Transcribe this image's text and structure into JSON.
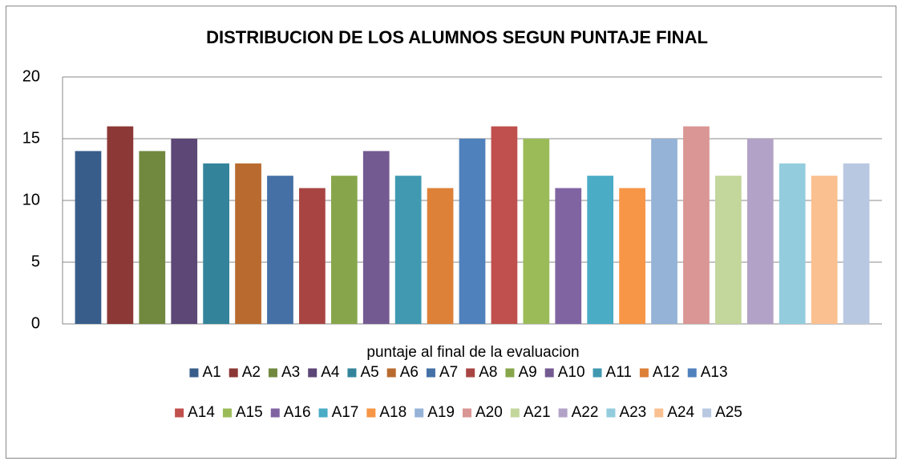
{
  "chart_data": {
    "type": "bar",
    "title": "DISTRIBUCION DE LOS ALUMNOS SEGUN PUNTAJE FINAL",
    "x_label": "puntaje al final de la evaluacion",
    "categories": [
      null
    ],
    "series": [
      {
        "name": "A1",
        "color": "#385d8a",
        "values": [
          14
        ]
      },
      {
        "name": "A2",
        "color": "#8c3836",
        "values": [
          16
        ]
      },
      {
        "name": "A3",
        "color": "#71893f",
        "values": [
          14
        ]
      },
      {
        "name": "A4",
        "color": "#5c4776",
        "values": [
          15
        ]
      },
      {
        "name": "A5",
        "color": "#33849a",
        "values": [
          13
        ]
      },
      {
        "name": "A6",
        "color": "#b96b2f",
        "values": [
          13
        ]
      },
      {
        "name": "A7",
        "color": "#4470a6",
        "values": [
          12
        ]
      },
      {
        "name": "A8",
        "color": "#a84543",
        "values": [
          11
        ]
      },
      {
        "name": "A9",
        "color": "#87a64b",
        "values": [
          12
        ]
      },
      {
        "name": "A10",
        "color": "#735a91",
        "values": [
          14
        ]
      },
      {
        "name": "A11",
        "color": "#4099b1",
        "values": [
          12
        ]
      },
      {
        "name": "A12",
        "color": "#dd8139",
        "values": [
          11
        ]
      },
      {
        "name": "A13",
        "color": "#4f81bd",
        "values": [
          15
        ]
      },
      {
        "name": "A14",
        "color": "#c0504d",
        "values": [
          16
        ]
      },
      {
        "name": "A15",
        "color": "#9bbb59",
        "values": [
          15
        ]
      },
      {
        "name": "A16",
        "color": "#8064a2",
        "values": [
          11
        ]
      },
      {
        "name": "A17",
        "color": "#4bacc6",
        "values": [
          12
        ]
      },
      {
        "name": "A18",
        "color": "#f79646",
        "values": [
          11
        ]
      },
      {
        "name": "A19",
        "color": "#95b3d7",
        "values": [
          15
        ]
      },
      {
        "name": "A20",
        "color": "#d99694",
        "values": [
          16
        ]
      },
      {
        "name": "A21",
        "color": "#c3d69b",
        "values": [
          12
        ]
      },
      {
        "name": "A22",
        "color": "#b3a2c7",
        "values": [
          15
        ]
      },
      {
        "name": "A23",
        "color": "#93cddd",
        "values": [
          13
        ]
      },
      {
        "name": "A24",
        "color": "#fac090",
        "values": [
          12
        ]
      },
      {
        "name": "A25",
        "color": "#b9c8e1",
        "values": [
          13
        ]
      }
    ],
    "ylim": [
      0,
      20
    ],
    "yticks": [
      0,
      5,
      10,
      15,
      20
    ],
    "grid": true,
    "legend": "bottom"
  }
}
